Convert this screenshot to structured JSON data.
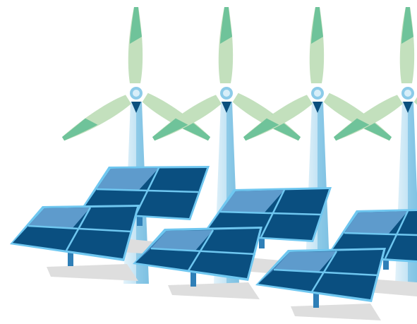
{
  "illustration": {
    "subject": "wind-turbines-and-solar-panels",
    "turbine_count": 4,
    "solar_panel_count": 6
  },
  "colors": {
    "background": "#ffffff",
    "blade_light": "#c3e0bd",
    "blade_dark": "#6fc39a",
    "tower_light": "#d6ecf7",
    "tower_mid": "#8fcbe8",
    "hub_outer": "#8ccbe9",
    "hub_inner": "#d7eef9",
    "nacelle": "#0b4f7d",
    "panel_frame": "#6fc7f0",
    "panel_dark": "#0a4f80",
    "panel_light": "#3c80b8",
    "panel_glare": "#74aed8",
    "panel_post": "#2f7fb7",
    "shadow": "#dedede"
  }
}
